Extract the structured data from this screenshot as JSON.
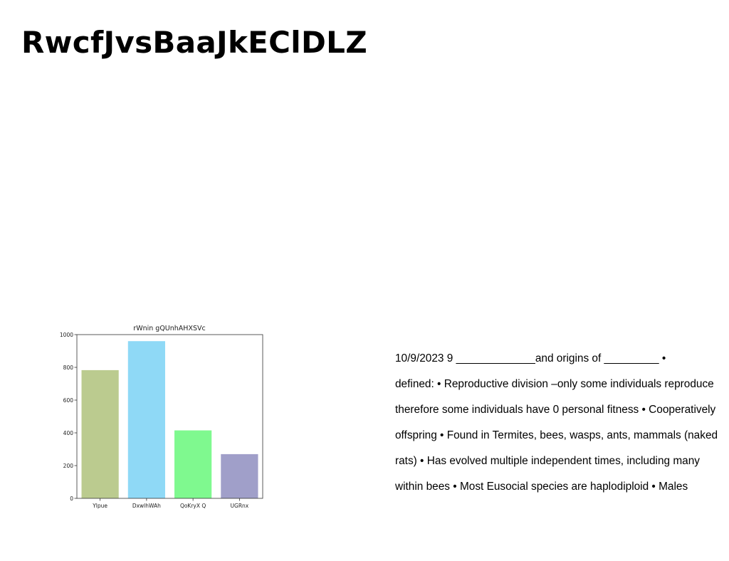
{
  "page": {
    "title": "RwcfJvsBaaJkEClDLZ"
  },
  "body_text": {
    "lines": [
      "10/9/2023 9 _____________and origins of _________ •",
      "defined: • Reproductive division –only some individuals reproduce",
      "therefore some individuals have 0 personal fitness • Cooperatively",
      "offspring • Found in Termites, bees, wasps, ants, mammals (naked",
      "rats) • Has evolved multiple independent times, including many",
      "within bees • Most Eusocial species are haplodiploid • Males"
    ]
  },
  "chart_data": {
    "type": "bar",
    "title": "rWnin gQUnhAHXSVc",
    "xlabel": "",
    "ylabel": "",
    "categories": [
      "Ylpue",
      "DxwlhWAh",
      "QoKryX Q",
      "UGRnx"
    ],
    "values": [
      783,
      960,
      415,
      270
    ],
    "colors": [
      "#bbcb8f",
      "#8fd9f6",
      "#7ff98f",
      "#a09fc9"
    ],
    "ylim": [
      0,
      1000
    ],
    "yticks": [
      0,
      200,
      400,
      600,
      800,
      1000
    ],
    "grid": false,
    "legend": "none"
  }
}
